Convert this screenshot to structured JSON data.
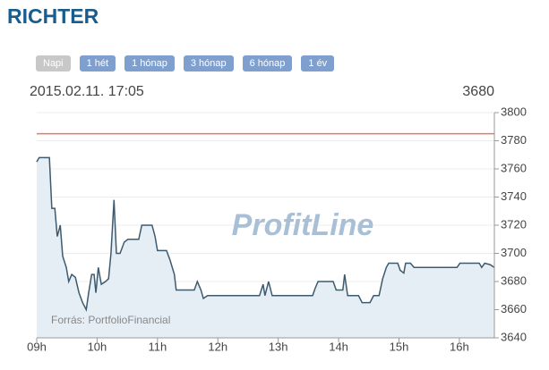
{
  "header": {
    "title": "RICHTER",
    "buttons": [
      "Napi",
      "1 hét",
      "1 hónap",
      "3 hónap",
      "6 hónap",
      "1 év"
    ],
    "selected_button": 0,
    "timestamp": "2015.02.11. 17:05",
    "last_value": 3680
  },
  "chart_data": {
    "type": "line",
    "annotation": "Forrás: PortfolioFinancial",
    "watermark": "ProfitLine",
    "x": [
      9.0,
      9.04,
      9.21,
      9.25,
      9.3,
      9.34,
      9.39,
      9.43,
      9.49,
      9.53,
      9.58,
      9.64,
      9.7,
      9.76,
      9.82,
      9.86,
      9.91,
      9.95,
      9.98,
      10.02,
      10.07,
      10.14,
      10.19,
      10.23,
      10.28,
      10.32,
      10.38,
      10.45,
      10.51,
      10.69,
      10.74,
      10.91,
      10.96,
      11.0,
      11.15,
      11.21,
      11.28,
      11.31,
      11.61,
      11.66,
      11.72,
      11.76,
      11.83,
      12.69,
      12.75,
      12.78,
      12.84,
      12.9,
      13.57,
      13.61,
      13.66,
      13.91,
      13.96,
      14.07,
      14.1,
      14.15,
      14.33,
      14.39,
      14.52,
      14.58,
      14.67,
      14.73,
      14.79,
      14.83,
      14.98,
      15.02,
      15.08,
      15.11,
      15.19,
      15.25,
      15.96,
      16.01,
      16.33,
      16.37,
      16.42,
      16.51,
      16.58
    ],
    "series": [
      {
        "color": "#3d5a6e",
        "fill": "#e6eef5",
        "values": [
          3765,
          3768,
          3768,
          3732,
          3732,
          3712,
          3720,
          3698,
          3690,
          3680,
          3685,
          3683,
          3672,
          3665,
          3660,
          3672,
          3685,
          3685,
          3672,
          3690,
          3678,
          3680,
          3682,
          3700,
          3738,
          3700,
          3700,
          3708,
          3710,
          3710,
          3720,
          3720,
          3712,
          3702,
          3702,
          3695,
          3685,
          3674,
          3674,
          3680,
          3674,
          3668,
          3670,
          3670,
          3678,
          3670,
          3680,
          3670,
          3670,
          3675,
          3680,
          3680,
          3674,
          3674,
          3685,
          3670,
          3670,
          3665,
          3665,
          3670,
          3670,
          3682,
          3690,
          3693,
          3693,
          3688,
          3686,
          3693,
          3693,
          3690,
          3690,
          3693,
          3693,
          3690,
          3693,
          3692,
          3690
        ]
      }
    ],
    "reference_line": {
      "value": 3785,
      "color": "#e07a6a"
    },
    "xlim": [
      9,
      16.58
    ],
    "xticks": [
      {
        "value": 9,
        "label": "09h"
      },
      {
        "value": 10,
        "label": "10h"
      },
      {
        "value": 11,
        "label": "11h"
      },
      {
        "value": 12,
        "label": "12h"
      },
      {
        "value": 13,
        "label": "13h"
      },
      {
        "value": 14,
        "label": "14h"
      },
      {
        "value": 15,
        "label": "15h"
      },
      {
        "value": 16,
        "label": "16h"
      }
    ],
    "ylim": [
      3640,
      3800
    ],
    "yticks": [
      3640,
      3660,
      3680,
      3700,
      3720,
      3740,
      3760,
      3780,
      3800
    ],
    "grid": true
  }
}
